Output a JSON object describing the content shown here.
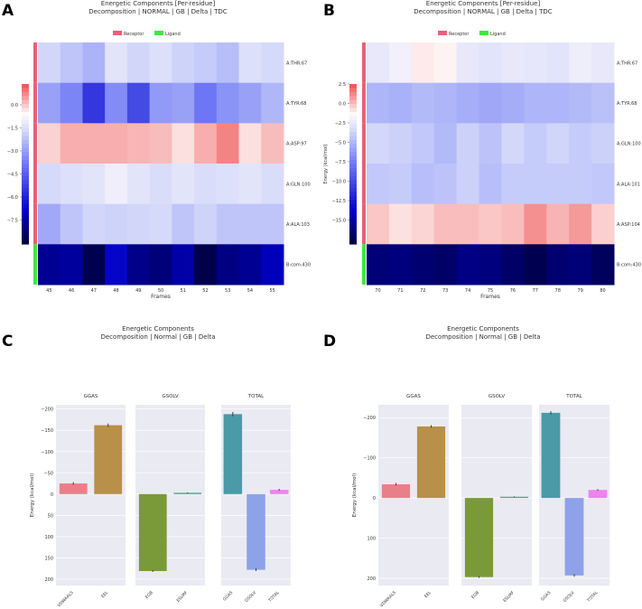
{
  "panels": {
    "A": {
      "letter": "A"
    },
    "B": {
      "letter": "B"
    },
    "C": {
      "letter": "C"
    },
    "D": {
      "letter": "D"
    }
  },
  "colors": {
    "receptor": "#e8607a",
    "ligand": "#3ee83e",
    "bg_facet": "#eaeaf2",
    "bar_colors": {
      "VDWAALS": "#e8808a",
      "EEL": "#b8904a",
      "EGB": "#7a9a3a",
      "ESURF": "#4aa886",
      "GGAS": "#4a9aa8",
      "GSOLV": "#8ea2e8",
      "TOTAL": "#ee82ee"
    }
  },
  "chart_data": [
    {
      "id": "A",
      "type": "heatmap",
      "title": "Energetic Components [Per-residue]",
      "subtitle": "Decomposition | NORMAL | GB | Delta | TDC",
      "legend": [
        "Receptor",
        "Ligand"
      ],
      "xlabel": "Frames",
      "ylabel": "Energy (kcal/mol)",
      "x": [
        "45",
        "46",
        "47",
        "48",
        "49",
        "50",
        "51",
        "52",
        "53",
        "54",
        "55"
      ],
      "rows": [
        "A:THR:67",
        "A:TYR:68",
        "A:ASP:97",
        "A:GLN:100",
        "A:ALA:103",
        "B:com:430"
      ],
      "row_group": [
        "receptor",
        "receptor",
        "receptor",
        "receptor",
        "receptor",
        "ligand"
      ],
      "vrange": [
        -10.5,
        2.2
      ],
      "colorbar_ticks": [
        "0.0",
        "−1.5",
        "−3.0",
        "−4.5",
        "−6.0",
        "−7.5"
      ],
      "values": [
        [
          -1.5,
          -2.0,
          -2.5,
          -1.0,
          -1.5,
          -1.2,
          -1.6,
          -1.8,
          -2.2,
          -1.2,
          -1.4
        ],
        [
          -3.0,
          -3.8,
          -6.2,
          -3.6,
          -5.6,
          -3.2,
          -3.0,
          -4.2,
          -3.4,
          -3.0,
          -2.4
        ],
        [
          0.5,
          1.0,
          1.0,
          1.0,
          0.9,
          0.8,
          0.3,
          1.0,
          1.6,
          0.3,
          0.8
        ],
        [
          -1.4,
          -1.2,
          -1.0,
          -0.6,
          -1.0,
          -1.3,
          -1.0,
          -1.3,
          -1.2,
          -1.0,
          -1.3
        ],
        [
          -2.8,
          -2.0,
          -1.5,
          -1.6,
          -1.5,
          -1.4,
          -2.0,
          -1.6,
          -2.0,
          -2.0,
          -2.0
        ],
        [
          -9.0,
          -8.8,
          -10.3,
          -7.8,
          -9.2,
          -9.5,
          -8.6,
          -10.4,
          -9.3,
          -9.0,
          -8.2
        ]
      ]
    },
    {
      "id": "B",
      "type": "heatmap",
      "title": "Energetic Components [Per-residue]",
      "subtitle": "Decomposition | NORMAL | GB | Delta | TDC",
      "legend": [
        "Receptor",
        "Ligand"
      ],
      "xlabel": "Frames",
      "ylabel": "Energy (kcal/mol)",
      "x": [
        "70",
        "71",
        "72",
        "73",
        "74",
        "75",
        "76",
        "77",
        "78",
        "79",
        "80"
      ],
      "rows": [
        "A:THR:67",
        "A:TYR:68",
        "A:GLN:100",
        "A:ALA:101",
        "A:ASP:104",
        "B:com:430"
      ],
      "row_group": [
        "receptor",
        "receptor",
        "receptor",
        "receptor",
        "receptor",
        "ligand"
      ],
      "vrange": [
        -16.5,
        3.2
      ],
      "colorbar_ticks": [
        "2.5",
        "0.0",
        "−2.5",
        "−5.0",
        "−7.5",
        "−10.0",
        "−12.5",
        "−15.0"
      ],
      "values": [
        [
          -1.5,
          -1.0,
          0.0,
          -0.2,
          -1.5,
          -1.8,
          -1.5,
          -1.6,
          -1.8,
          -1.2,
          -1.5
        ],
        [
          -4.0,
          -4.2,
          -3.8,
          -4.0,
          -4.3,
          -4.6,
          -4.4,
          -4.0,
          -4.0,
          -3.8,
          -3.5
        ],
        [
          -2.5,
          -2.8,
          -3.2,
          -3.8,
          -2.8,
          -3.4,
          -2.5,
          -3.0,
          -2.6,
          -3.0,
          -2.8
        ],
        [
          -3.2,
          -3.0,
          -3.6,
          -3.4,
          -2.8,
          -3.6,
          -3.0,
          -3.0,
          -3.0,
          -3.0,
          -3.2
        ],
        [
          0.8,
          0.2,
          0.5,
          1.0,
          1.0,
          0.8,
          1.0,
          2.0,
          1.2,
          1.8,
          0.6
        ],
        [
          -15.0,
          -14.8,
          -15.2,
          -15.5,
          -14.6,
          -14.8,
          -15.5,
          -16.2,
          -15.2,
          -15.0,
          -15.8
        ]
      ]
    },
    {
      "id": "C",
      "type": "bar",
      "title": "Energetic Components",
      "subtitle": "Decomposition | Normal | GB | Delta",
      "ylabel": "Energy (kcal/mol)",
      "ylim": [
        215,
        -210
      ],
      "yticks": [
        {
          "v": -200,
          "label": "−200"
        },
        {
          "v": -150,
          "label": "−150"
        },
        {
          "v": -100,
          "label": "−100"
        },
        {
          "v": -50,
          "label": "−50"
        },
        {
          "v": 0,
          "label": "0"
        },
        {
          "v": 50,
          "label": "50"
        },
        {
          "v": 100,
          "label": "100"
        },
        {
          "v": 150,
          "label": "150"
        },
        {
          "v": 200,
          "label": "200"
        }
      ],
      "facets": [
        {
          "title": "GGAS",
          "categories": [
            "VDWAALS",
            "EEL"
          ],
          "values": [
            -25,
            -162
          ],
          "errors": [
            3,
            4
          ]
        },
        {
          "title": "GSOLV",
          "categories": [
            "EGB",
            "ESURF"
          ],
          "values": [
            181,
            -3
          ],
          "errors": [
            2,
            1
          ]
        },
        {
          "title": "TOTAL",
          "categories": [
            "GGAS",
            "GSOLV",
            "TOTAL"
          ],
          "values": [
            -188,
            178,
            -10
          ],
          "errors": [
            5,
            3,
            2
          ]
        }
      ]
    },
    {
      "id": "D",
      "type": "bar",
      "title": "Energetic Components",
      "subtitle": "Decomposition | Normal | GB | Delta",
      "ylabel": "Energy (kcal/mol)",
      "ylim": [
        218,
        -232
      ],
      "yticks": [
        {
          "v": -200,
          "label": "−200"
        },
        {
          "v": -100,
          "label": "−100"
        },
        {
          "v": 0,
          "label": "0"
        },
        {
          "v": 100,
          "label": "100"
        },
        {
          "v": 200,
          "label": "200"
        }
      ],
      "facets": [
        {
          "title": "GGAS",
          "categories": [
            "VDWAALS",
            "EEL"
          ],
          "values": [
            -34,
            -178
          ],
          "errors": [
            3,
            3
          ]
        },
        {
          "title": "GSOLV",
          "categories": [
            "EGB",
            "ESURF"
          ],
          "values": [
            197,
            -3
          ],
          "errors": [
            2,
            1
          ]
        },
        {
          "title": "TOTAL",
          "categories": [
            "GGAS",
            "GSOLV",
            "TOTAL"
          ],
          "values": [
            -212,
            193,
            -20
          ],
          "errors": [
            4,
            3,
            2
          ]
        }
      ]
    }
  ]
}
